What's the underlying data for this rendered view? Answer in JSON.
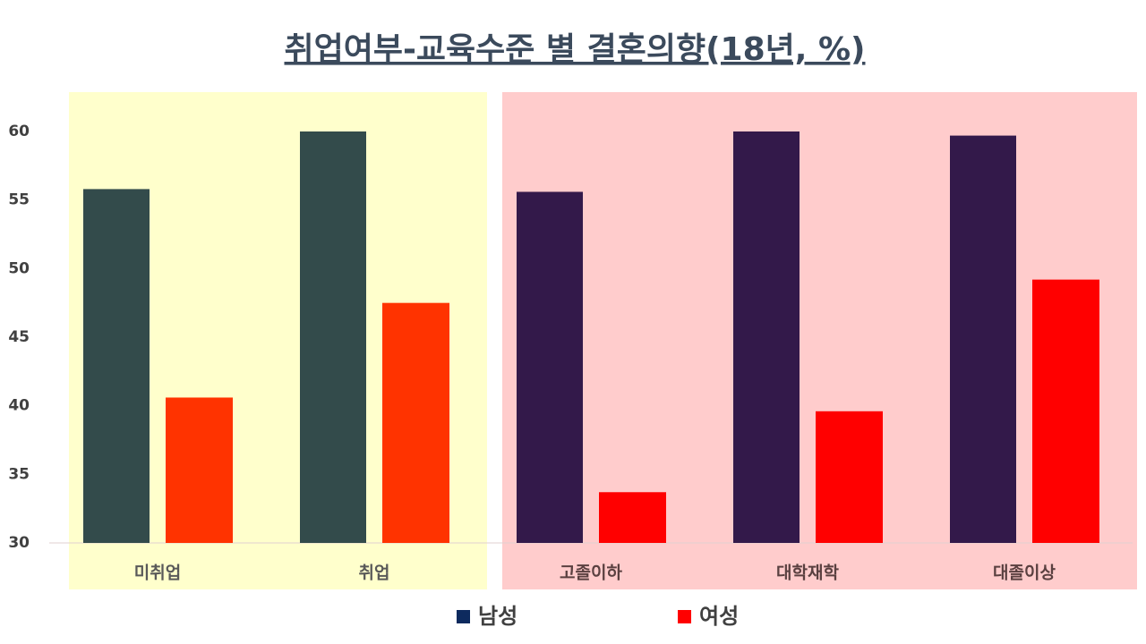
{
  "chart_data": {
    "type": "bar",
    "title": "취업여부-교육수준 별 결혼의향(18년, %)",
    "categories": [
      "미취업",
      "취업",
      "고졸이하",
      "대학재학",
      "대졸이상"
    ],
    "category_backgrounds": [
      "#ffffcc",
      "#ffffcc",
      "#ffcccc",
      "#ffcccc",
      "#ffcccc"
    ],
    "series": [
      {
        "name": "남성",
        "color": "#0d2a5e",
        "bar_colors": [
          "#334b4b",
          "#334b4b",
          "#33194a",
          "#33194a",
          "#33194a"
        ],
        "values": [
          55.8,
          60.0,
          55.6,
          60.0,
          59.7
        ]
      },
      {
        "name": "여성",
        "color": "#ff0000",
        "bar_colors": [
          "#ff3300",
          "#ff3300",
          "#ff0000",
          "#ff0000",
          "#ff0000"
        ],
        "values": [
          40.6,
          47.5,
          33.7,
          39.6,
          49.2
        ]
      }
    ],
    "ylim": [
      30,
      63
    ],
    "yticks": [
      30,
      35,
      40,
      45,
      50,
      55,
      60
    ],
    "grid": false
  }
}
